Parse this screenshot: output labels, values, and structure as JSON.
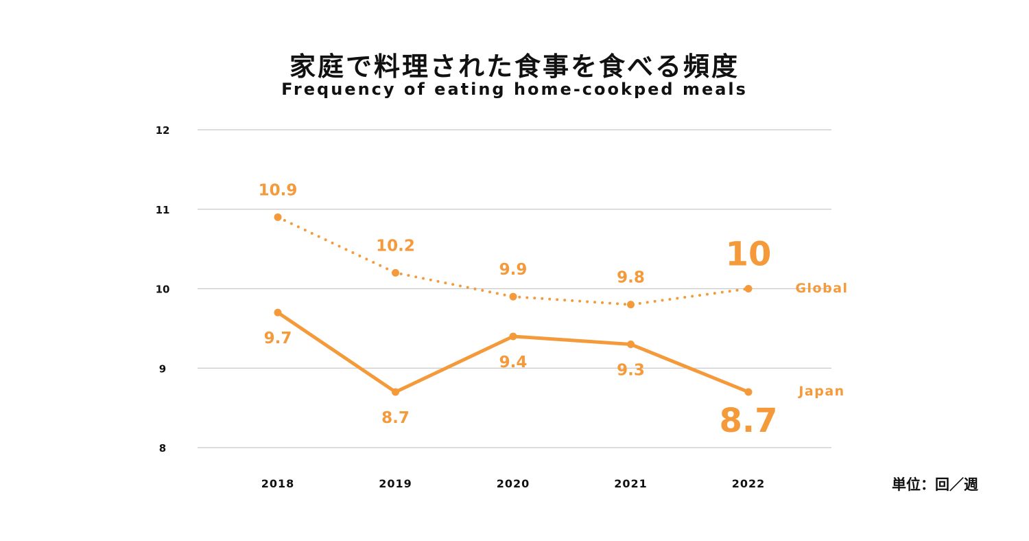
{
  "title": "家庭で料理された食事を食べる頻度",
  "subtitle": "Frequency of eating home-cookped meals",
  "unit_label": "単位：回／週",
  "colors": {
    "accent": "#F49A3A",
    "grid": "#C8C8C8",
    "text": "#111111"
  },
  "chart_data": {
    "type": "line",
    "categories": [
      "2018",
      "2019",
      "2020",
      "2021",
      "2022"
    ],
    "ylim": [
      8,
      12
    ],
    "yticks": [
      "8",
      "9",
      "10",
      "11",
      "12"
    ],
    "grid": true,
    "series": [
      {
        "name": "Global",
        "values": [
          10.9,
          10.2,
          9.9,
          9.8,
          10
        ],
        "labels": [
          "10.9",
          "10.2",
          "9.9",
          "9.8",
          "10"
        ],
        "style": "dotted",
        "label_position": "above"
      },
      {
        "name": "Japan",
        "values": [
          9.7,
          8.7,
          9.4,
          9.3,
          8.7
        ],
        "labels": [
          "9.7",
          "8.7",
          "9.4",
          "9.3",
          "8.7"
        ],
        "style": "solid",
        "label_position": "below"
      }
    ]
  }
}
